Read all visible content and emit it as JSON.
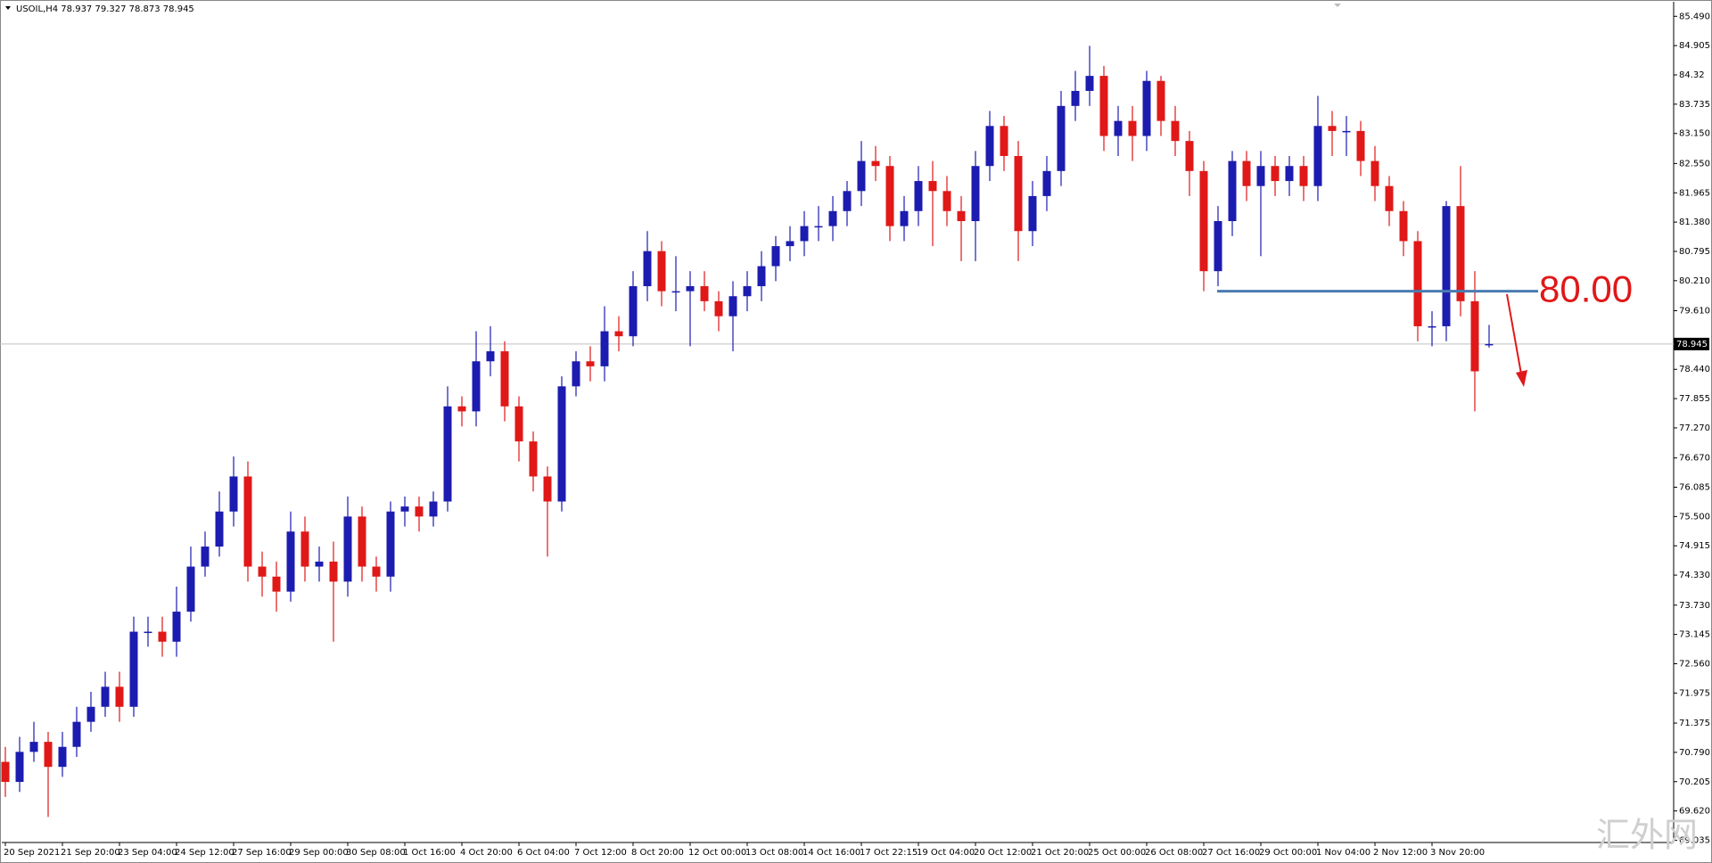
{
  "chart_data": {
    "type": "candlestick",
    "title": "USOIL,H4  78.937 79.327 78.873 78.945",
    "up_color": "#1c1cb0",
    "down_color": "#e01818",
    "grid": false,
    "categories": [
      "20 Sep 2021",
      null,
      null,
      null,
      "21 Sep 20:00",
      null,
      null,
      null,
      "23 Sep 04:00",
      null,
      null,
      null,
      "24 Sep 12:00",
      null,
      null,
      null,
      "27 Sep 16:00",
      null,
      null,
      null,
      "29 Sep 00:00",
      null,
      null,
      null,
      "30 Sep 08:00",
      null,
      null,
      null,
      "1 Oct 16:00",
      null,
      null,
      null,
      "4 Oct 20:00",
      null,
      null,
      null,
      "6 Oct 04:00",
      null,
      null,
      null,
      "7 Oct 12:00",
      null,
      null,
      null,
      "8 Oct 20:00",
      null,
      null,
      null,
      "12 Oct 00:00",
      null,
      null,
      null,
      "13 Oct 08:00",
      null,
      null,
      null,
      "14 Oct 16:00",
      null,
      null,
      null,
      "17 Oct 22:15",
      null,
      null,
      null,
      "19 Oct 04:00",
      null,
      null,
      null,
      "20 Oct 12:00",
      null,
      null,
      null,
      "21 Oct 20:00",
      null,
      null,
      null,
      "25 Oct 00:00",
      null,
      null,
      null,
      "26 Oct 08:00",
      null,
      null,
      null,
      "27 Oct 16:00",
      null,
      null,
      null,
      "29 Oct 00:00",
      null,
      null,
      null,
      "1 Nov 04:00",
      null,
      null,
      null,
      "2 Nov 12:00",
      null,
      null,
      null,
      "3 Nov 20:00",
      null,
      null,
      null,
      null
    ],
    "open": [
      70.6,
      70.2,
      70.8,
      71.0,
      70.5,
      70.9,
      71.4,
      71.7,
      72.1,
      71.7,
      73.2,
      73.2,
      73.0,
      73.6,
      74.5,
      74.9,
      75.6,
      76.3,
      74.5,
      74.3,
      74.0,
      75.2,
      74.5,
      74.6,
      74.2,
      75.5,
      74.5,
      74.3,
      75.6,
      75.7,
      75.5,
      75.8,
      77.7,
      77.6,
      78.6,
      78.8,
      77.7,
      77.0,
      76.3,
      75.8,
      78.1,
      78.6,
      78.5,
      79.2,
      79.1,
      80.1,
      80.8,
      80.0,
      80.0,
      80.1,
      79.8,
      79.5,
      79.9,
      80.1,
      80.5,
      80.9,
      81.0,
      81.3,
      81.3,
      81.6,
      82.0,
      82.6,
      82.5,
      81.3,
      81.6,
      82.2,
      82.0,
      81.6,
      81.4,
      82.5,
      83.3,
      82.7,
      81.2,
      81.9,
      82.4,
      83.7,
      84.0,
      84.3,
      83.1,
      83.4,
      83.1,
      84.2,
      83.4,
      83.0,
      82.4,
      80.4,
      81.4,
      82.6,
      82.1,
      82.5,
      82.2,
      82.5,
      82.1,
      83.3,
      83.2,
      83.2,
      82.6,
      82.1,
      81.6,
      81.0,
      79.3,
      79.3,
      81.7,
      79.8,
      78.937
    ],
    "high": [
      70.9,
      71.1,
      71.4,
      71.2,
      71.2,
      71.7,
      72.0,
      72.4,
      72.4,
      73.5,
      73.5,
      73.5,
      74.1,
      74.9,
      75.2,
      76.0,
      76.7,
      76.6,
      74.8,
      74.6,
      75.6,
      75.5,
      74.9,
      75.0,
      75.9,
      75.7,
      74.7,
      75.8,
      75.9,
      75.9,
      76.0,
      78.1,
      77.9,
      79.2,
      79.3,
      79.0,
      77.9,
      77.2,
      76.5,
      78.3,
      78.8,
      78.9,
      79.7,
      79.5,
      80.4,
      81.2,
      81.0,
      80.7,
      80.4,
      80.4,
      80.0,
      80.2,
      80.4,
      80.8,
      81.1,
      81.3,
      81.6,
      81.7,
      81.9,
      82.2,
      83.0,
      82.9,
      82.7,
      81.9,
      82.5,
      82.6,
      82.3,
      81.9,
      82.8,
      83.6,
      83.5,
      83.0,
      82.2,
      82.7,
      84.0,
      84.4,
      84.9,
      84.5,
      83.7,
      83.7,
      84.4,
      84.3,
      83.7,
      83.2,
      82.6,
      81.7,
      82.8,
      82.8,
      82.8,
      82.7,
      82.7,
      82.7,
      83.9,
      83.6,
      83.5,
      83.4,
      82.9,
      82.3,
      81.8,
      81.2,
      79.6,
      81.8,
      82.5,
      80.4,
      79.327
    ],
    "low": [
      69.9,
      70.0,
      70.6,
      69.5,
      70.3,
      70.7,
      71.2,
      71.5,
      71.4,
      71.5,
      72.9,
      72.7,
      72.7,
      73.4,
      74.3,
      74.7,
      75.3,
      74.2,
      73.9,
      73.6,
      73.8,
      74.2,
      74.2,
      73.0,
      73.9,
      74.2,
      74.0,
      74.0,
      75.3,
      75.2,
      75.3,
      75.6,
      77.3,
      77.3,
      78.3,
      77.4,
      76.6,
      76.0,
      74.7,
      75.6,
      77.9,
      78.2,
      78.2,
      78.8,
      78.9,
      79.8,
      79.7,
      79.6,
      78.9,
      79.6,
      79.2,
      78.8,
      79.6,
      79.8,
      80.2,
      80.6,
      80.7,
      81.0,
      81.0,
      81.3,
      81.7,
      82.2,
      81.0,
      81.0,
      81.3,
      80.9,
      81.3,
      80.6,
      80.6,
      82.2,
      82.4,
      80.6,
      80.9,
      81.6,
      82.1,
      83.4,
      83.7,
      82.8,
      82.7,
      82.6,
      82.8,
      83.1,
      82.7,
      81.9,
      80.0,
      80.1,
      81.1,
      81.8,
      80.7,
      81.9,
      81.9,
      81.8,
      81.8,
      82.7,
      82.7,
      82.3,
      81.8,
      81.3,
      80.7,
      79.0,
      78.9,
      79.0,
      79.5,
      77.6,
      78.873
    ],
    "close": [
      70.2,
      70.8,
      71.0,
      70.5,
      70.9,
      71.4,
      71.7,
      72.1,
      71.7,
      73.2,
      73.2,
      73.0,
      73.6,
      74.5,
      74.9,
      75.6,
      76.3,
      74.5,
      74.3,
      74.0,
      75.2,
      74.5,
      74.6,
      74.2,
      75.5,
      74.5,
      74.3,
      75.6,
      75.7,
      75.5,
      75.8,
      77.7,
      77.6,
      78.6,
      78.8,
      77.7,
      77.0,
      76.3,
      75.8,
      78.1,
      78.6,
      78.5,
      79.2,
      79.1,
      80.1,
      80.8,
      80.0,
      80.0,
      80.1,
      79.8,
      79.5,
      79.9,
      80.1,
      80.5,
      80.9,
      81.0,
      81.3,
      81.3,
      81.6,
      82.0,
      82.6,
      82.5,
      81.3,
      81.6,
      82.2,
      82.0,
      81.6,
      81.4,
      82.5,
      83.3,
      82.7,
      81.2,
      81.9,
      82.4,
      83.7,
      84.0,
      84.3,
      83.1,
      83.4,
      83.1,
      84.2,
      83.4,
      83.0,
      82.4,
      80.4,
      81.4,
      82.6,
      82.1,
      82.5,
      82.2,
      82.5,
      82.1,
      83.3,
      83.2,
      83.2,
      82.6,
      82.1,
      81.6,
      81.0,
      79.3,
      79.3,
      81.7,
      79.8,
      78.4,
      78.945
    ],
    "ylim": [
      68.99,
      85.78
    ],
    "yticks": [
      {
        "value": 85.49,
        "label": "85.490"
      },
      84.905,
      84.32,
      {
        "value": 83.735,
        "label": "83.735"
      },
      {
        "value": 83.15,
        "label": "83.150"
      },
      {
        "value": 82.55,
        "label": "82.550"
      },
      81.965,
      {
        "value": 81.38,
        "label": "81.380"
      },
      80.795,
      {
        "value": 80.21,
        "label": "80.210"
      },
      {
        "value": 79.61,
        "label": "79.610"
      },
      {
        "value": 78.44,
        "label": "78.440"
      },
      77.855,
      {
        "value": 77.27,
        "label": "77.270"
      },
      {
        "value": 76.67,
        "label": "76.670"
      },
      76.085,
      {
        "value": 75.5,
        "label": "75.500"
      },
      74.915,
      {
        "value": 74.33,
        "label": "74.330"
      },
      {
        "value": 73.73,
        "label": "73.730"
      },
      73.145,
      {
        "value": 72.56,
        "label": "72.560"
      },
      71.975,
      71.375,
      {
        "value": 70.79,
        "label": "70.790"
      },
      70.205,
      {
        "value": 69.62,
        "label": "69.620"
      },
      69.035
    ],
    "last_price": {
      "value": 78.945,
      "label": "78.945"
    },
    "level": {
      "value": 80,
      "label": "80.00"
    },
    "watermark": "汇外网"
  }
}
